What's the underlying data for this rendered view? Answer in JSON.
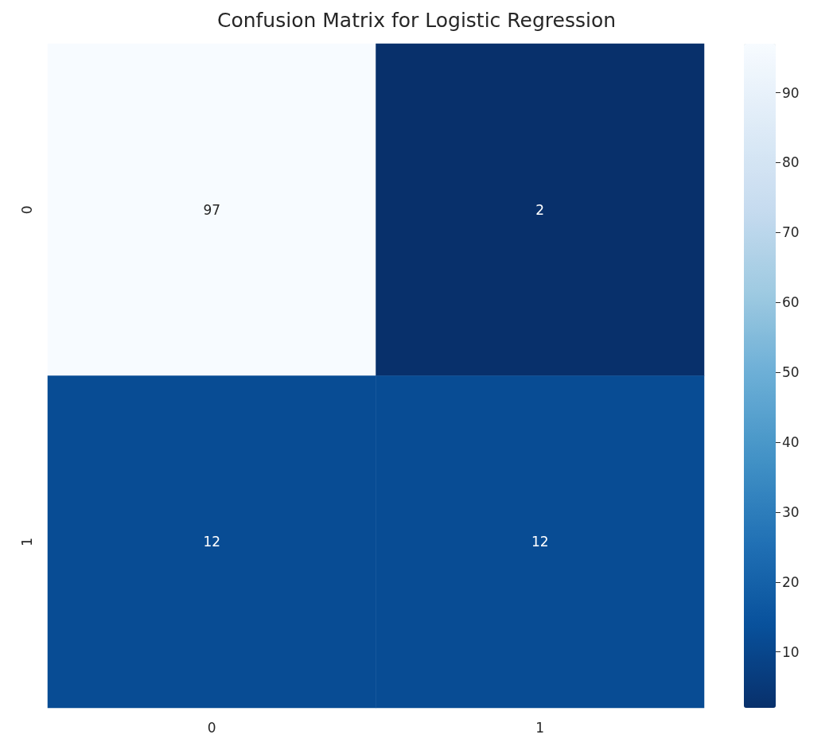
{
  "chart_data": {
    "type": "heatmap",
    "title": "Confusion Matrix for Logistic Regression",
    "categories": [
      "0",
      "1"
    ],
    "y_categories": [
      "0",
      "1"
    ],
    "cells": [
      [
        97,
        2
      ],
      [
        12,
        12
      ]
    ],
    "data_labels": true,
    "clim": [
      2,
      97
    ],
    "cticks": [
      10,
      20,
      30,
      40,
      50,
      60,
      70,
      80,
      90
    ]
  }
}
